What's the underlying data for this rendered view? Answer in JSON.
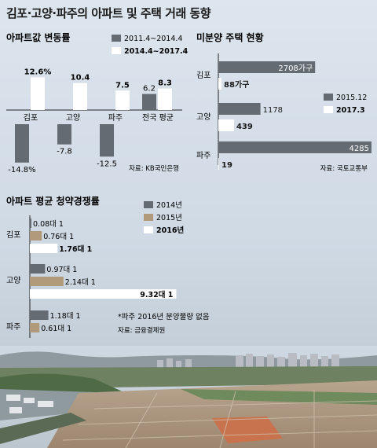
{
  "title": "김포·고양·파주의 아파트 및 주택 거래 동향",
  "chart_data": [
    {
      "type": "bar",
      "title": "아파트값 변동률",
      "categories": [
        "김포",
        "고양",
        "파주",
        "전국 평균"
      ],
      "series": [
        {
          "name": "2011.4~2014.4",
          "values": [
            -14.8,
            -7.8,
            -12.5,
            6.2
          ],
          "labels": [
            "-14.8%",
            "-7.8",
            "-12.5",
            "6.2"
          ],
          "color": "#646b72"
        },
        {
          "name": "2014.4~2017.4",
          "values": [
            12.6,
            10.4,
            7.5,
            8.3
          ],
          "labels": [
            "12.6%",
            "10.4",
            "7.5",
            "8.3"
          ],
          "color": "#ffffff"
        }
      ],
      "unit": "%",
      "source": "자료: KB국민은행"
    },
    {
      "type": "bar",
      "orientation": "horizontal",
      "title": "미분양 주택 현황",
      "categories": [
        "김포",
        "고양",
        "파주"
      ],
      "series": [
        {
          "name": "2015.12",
          "values": [
            2708,
            1178,
            4285
          ],
          "labels": [
            "2708가구",
            "1178",
            "4285"
          ],
          "color": "#646b72"
        },
        {
          "name": "2017.3",
          "values": [
            88,
            439,
            19
          ],
          "labels": [
            "88가구",
            "439",
            "19"
          ],
          "color": "#ffffff"
        }
      ],
      "source": "자료: 국토교통부"
    },
    {
      "type": "bar",
      "orientation": "horizontal",
      "title": "아파트 평균 청약경쟁률",
      "categories": [
        "김포",
        "고양",
        "파주"
      ],
      "series": [
        {
          "name": "2014년",
          "values": [
            0.08,
            0.97,
            1.18
          ],
          "labels": [
            "0.08대 1",
            "0.97대 1",
            "1.18대 1"
          ],
          "color": "#646b72"
        },
        {
          "name": "2015년",
          "values": [
            0.76,
            2.14,
            0.61
          ],
          "labels": [
            "0.76대 1",
            "2.14대 1",
            "0.61대 1"
          ],
          "color": "#b19a7b"
        },
        {
          "name": "2016년",
          "values": [
            1.76,
            9.32,
            null
          ],
          "labels": [
            "1.76대 1",
            "9.32대 1",
            ""
          ],
          "color": "#ffffff"
        }
      ],
      "note": "*파주 2016년 분양물량 없음",
      "source": "자료: 금융결제원"
    }
  ]
}
